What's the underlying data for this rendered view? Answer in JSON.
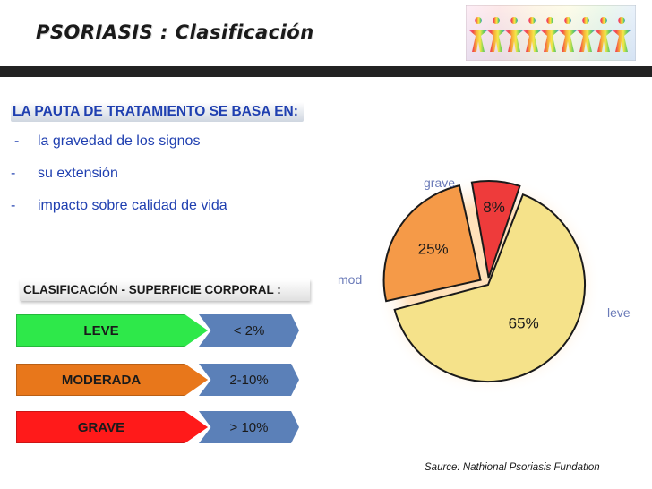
{
  "header": {
    "title": "PSORIASIS : Clasificación"
  },
  "intro": {
    "heading": "LA PAUTA DE TRATAMIENTO SE BASA EN:",
    "bullets": [
      {
        "dash": "-",
        "text": "la gravedad de los signos"
      },
      {
        "dash": "-",
        "text": "su extensión"
      },
      {
        "dash": "-",
        "text": "impacto sobre calidad de vida"
      }
    ]
  },
  "classification": {
    "heading": "CLASIFICACIÓN - SUPERFICIE CORPORAL :",
    "rows": [
      {
        "label": "LEVE",
        "value": "< 2%",
        "color": "#2ee84a"
      },
      {
        "label": "MODERADA",
        "value": "2-10%",
        "color": "#e8771b"
      },
      {
        "label": "GRAVE",
        "value": "> 10%",
        "color": "#ff1a1a"
      }
    ]
  },
  "chart_data": {
    "type": "pie",
    "slices": [
      {
        "label": "leve",
        "value": 65,
        "value_label": "65%",
        "color": "#f5e28a"
      },
      {
        "label": "mod",
        "value": 25,
        "value_label": "25%",
        "color": "#f59a48"
      },
      {
        "label": "grave",
        "value": 8,
        "value_label": "8%",
        "color": "#ee3b3b"
      }
    ],
    "legend": "none"
  },
  "source": "Saurce: Nathional Psoriasis Fundation"
}
